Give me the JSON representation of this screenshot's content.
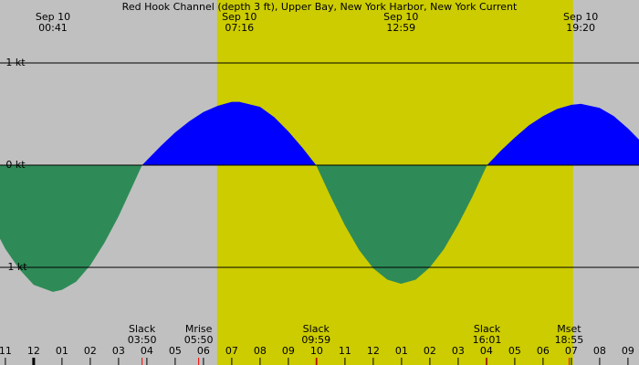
{
  "chart_data": {
    "type": "area",
    "title": "Red Hook Channel (depth 3 ft), Upper Bay, New York Harbor, New York Current",
    "x": [
      -1.19,
      -1,
      -0.5,
      0,
      0.68,
      1,
      1.5,
      2,
      2.5,
      3,
      3.5,
      3.83,
      4.5,
      5,
      5.5,
      6,
      6.5,
      7,
      7.27,
      8,
      8.5,
      9,
      9.5,
      9.98,
      10.5,
      11,
      11.5,
      12,
      12.5,
      12.98,
      13.5,
      14,
      14.5,
      15,
      15.5,
      16.02,
      16.5,
      17,
      17.5,
      18,
      18.5,
      19,
      19.33,
      20,
      20.5,
      21,
      21.39
    ],
    "values": [
      -0.72,
      -0.82,
      -1.02,
      -1.17,
      -1.24,
      -1.22,
      -1.14,
      -0.98,
      -0.76,
      -0.5,
      -0.2,
      0,
      0.19,
      0.32,
      0.43,
      0.52,
      0.58,
      0.62,
      0.62,
      0.57,
      0.47,
      0.33,
      0.17,
      0,
      -0.31,
      -0.59,
      -0.83,
      -1.01,
      -1.12,
      -1.16,
      -1.12,
      -1,
      -0.82,
      -0.58,
      -0.31,
      0,
      0.14,
      0.27,
      0.39,
      0.48,
      0.55,
      0.59,
      0.6,
      0.56,
      0.48,
      0.36,
      0.25
    ],
    "flood_color": "#0000ff",
    "ebb_color": "#2e8b57",
    "daylight": [
      6.48,
      19.06
    ],
    "daylight_color": "#cccc00",
    "background": "#c0c0c0",
    "xlim": [
      -1.19,
      21.39
    ],
    "ylim": [
      -1.955,
      1.616
    ],
    "yticks": [
      {
        "value": 1,
        "label": "1 kt"
      },
      {
        "value": 0,
        "label": "0 kt"
      },
      {
        "value": -1,
        "label": "-1 kt"
      }
    ],
    "xticks": [
      {
        "value": -1,
        "label": "11"
      },
      {
        "value": 0,
        "label": "12"
      },
      {
        "value": 1,
        "label": "01"
      },
      {
        "value": 2,
        "label": "02"
      },
      {
        "value": 3,
        "label": "03"
      },
      {
        "value": 4,
        "label": "04"
      },
      {
        "value": 5,
        "label": "05"
      },
      {
        "value": 6,
        "label": "06"
      },
      {
        "value": 7,
        "label": "07"
      },
      {
        "value": 8,
        "label": "08"
      },
      {
        "value": 9,
        "label": "09"
      },
      {
        "value": 10,
        "label": "10"
      },
      {
        "value": 11,
        "label": "11"
      },
      {
        "value": 12,
        "label": "12"
      },
      {
        "value": 13,
        "label": "01"
      },
      {
        "value": 14,
        "label": "02"
      },
      {
        "value": 15,
        "label": "03"
      },
      {
        "value": 16,
        "label": "04"
      },
      {
        "value": 17,
        "label": "05"
      },
      {
        "value": 18,
        "label": "06"
      },
      {
        "value": 19,
        "label": "07"
      },
      {
        "value": 20,
        "label": "08"
      },
      {
        "value": 21,
        "label": "09"
      }
    ],
    "peaks": [
      {
        "date": "Sep 10",
        "time": "00:41",
        "x": 0.68
      },
      {
        "date": "Sep 10",
        "time": "07:16",
        "x": 7.27
      },
      {
        "date": "Sep 10",
        "time": "12:59",
        "x": 12.98
      },
      {
        "date": "Sep 10",
        "time": "19:20",
        "x": 19.33
      }
    ],
    "events": [
      {
        "name": "Slack",
        "time": "03:50",
        "x": 3.83
      },
      {
        "name": "Mrise",
        "time": "05:50",
        "x": 5.83
      },
      {
        "name": "Slack",
        "time": "09:59",
        "x": 9.98
      },
      {
        "name": "Slack",
        "time": "16:01",
        "x": 16.02
      },
      {
        "name": "Mset",
        "time": "18:55",
        "x": 18.92
      }
    ]
  }
}
